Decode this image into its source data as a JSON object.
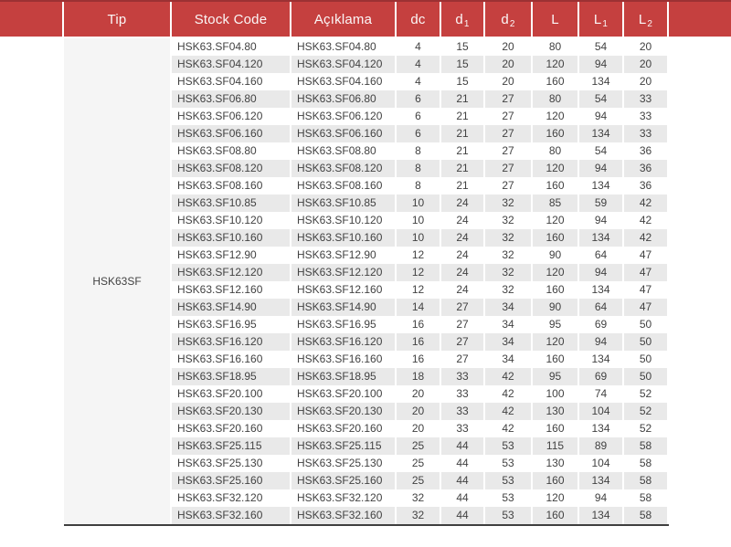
{
  "colors": {
    "red": "#C5403F",
    "red_dark": "#9C3133",
    "stripe": "#E9E9E9",
    "tip_bg": "#F5F5F5",
    "line": "#3F3F3F",
    "text": "#424242",
    "header_text": "#FBF7F7"
  },
  "table": {
    "header": {
      "tip": "Tip",
      "stock_code": "Stock Code",
      "aciklama": "Açıklama",
      "dc": "dc",
      "d1": {
        "base": "d",
        "sub": "1"
      },
      "d2": {
        "base": "d",
        "sub": "2"
      },
      "L": "L",
      "L1": {
        "base": "L",
        "sub": "1"
      },
      "L2": {
        "base": "L",
        "sub": "2"
      }
    },
    "tip_group_label": "HSK63SF",
    "rows": [
      {
        "stock_code": "HSK63.SF04.80",
        "aciklama": "HSK63.SF04.80",
        "dc": 4,
        "d1": 15,
        "d2": 20,
        "L": 80,
        "L1": 54,
        "L2": 20
      },
      {
        "stock_code": "HSK63.SF04.120",
        "aciklama": "HSK63.SF04.120",
        "dc": 4,
        "d1": 15,
        "d2": 20,
        "L": 120,
        "L1": 94,
        "L2": 20
      },
      {
        "stock_code": "HSK63.SF04.160",
        "aciklama": "HSK63.SF04.160",
        "dc": 4,
        "d1": 15,
        "d2": 20,
        "L": 160,
        "L1": 134,
        "L2": 20
      },
      {
        "stock_code": "HSK63.SF06.80",
        "aciklama": "HSK63.SF06.80",
        "dc": 6,
        "d1": 21,
        "d2": 27,
        "L": 80,
        "L1": 54,
        "L2": 33
      },
      {
        "stock_code": "HSK63.SF06.120",
        "aciklama": "HSK63.SF06.120",
        "dc": 6,
        "d1": 21,
        "d2": 27,
        "L": 120,
        "L1": 94,
        "L2": 33
      },
      {
        "stock_code": "HSK63.SF06.160",
        "aciklama": "HSK63.SF06.160",
        "dc": 6,
        "d1": 21,
        "d2": 27,
        "L": 160,
        "L1": 134,
        "L2": 33
      },
      {
        "stock_code": "HSK63.SF08.80",
        "aciklama": "HSK63.SF08.80",
        "dc": 8,
        "d1": 21,
        "d2": 27,
        "L": 80,
        "L1": 54,
        "L2": 36
      },
      {
        "stock_code": "HSK63.SF08.120",
        "aciklama": "HSK63.SF08.120",
        "dc": 8,
        "d1": 21,
        "d2": 27,
        "L": 120,
        "L1": 94,
        "L2": 36
      },
      {
        "stock_code": "HSK63.SF08.160",
        "aciklama": "HSK63.SF08.160",
        "dc": 8,
        "d1": 21,
        "d2": 27,
        "L": 160,
        "L1": 134,
        "L2": 36
      },
      {
        "stock_code": "HSK63.SF10.85",
        "aciklama": "HSK63.SF10.85",
        "dc": 10,
        "d1": 24,
        "d2": 32,
        "L": 85,
        "L1": 59,
        "L2": 42
      },
      {
        "stock_code": "HSK63.SF10.120",
        "aciklama": "HSK63.SF10.120",
        "dc": 10,
        "d1": 24,
        "d2": 32,
        "L": 120,
        "L1": 94,
        "L2": 42
      },
      {
        "stock_code": "HSK63.SF10.160",
        "aciklama": "HSK63.SF10.160",
        "dc": 10,
        "d1": 24,
        "d2": 32,
        "L": 160,
        "L1": 134,
        "L2": 42
      },
      {
        "stock_code": "HSK63.SF12.90",
        "aciklama": "HSK63.SF12.90",
        "dc": 12,
        "d1": 24,
        "d2": 32,
        "L": 90,
        "L1": 64,
        "L2": 47
      },
      {
        "stock_code": "HSK63.SF12.120",
        "aciklama": "HSK63.SF12.120",
        "dc": 12,
        "d1": 24,
        "d2": 32,
        "L": 120,
        "L1": 94,
        "L2": 47
      },
      {
        "stock_code": "HSK63.SF12.160",
        "aciklama": "HSK63.SF12.160",
        "dc": 12,
        "d1": 24,
        "d2": 32,
        "L": 160,
        "L1": 134,
        "L2": 47
      },
      {
        "stock_code": "HSK63.SF14.90",
        "aciklama": "HSK63.SF14.90",
        "dc": 14,
        "d1": 27,
        "d2": 34,
        "L": 90,
        "L1": 64,
        "L2": 47
      },
      {
        "stock_code": "HSK63.SF16.95",
        "aciklama": "HSK63.SF16.95",
        "dc": 16,
        "d1": 27,
        "d2": 34,
        "L": 95,
        "L1": 69,
        "L2": 50
      },
      {
        "stock_code": "HSK63.SF16.120",
        "aciklama": "HSK63.SF16.120",
        "dc": 16,
        "d1": 27,
        "d2": 34,
        "L": 120,
        "L1": 94,
        "L2": 50
      },
      {
        "stock_code": "HSK63.SF16.160",
        "aciklama": "HSK63.SF16.160",
        "dc": 16,
        "d1": 27,
        "d2": 34,
        "L": 160,
        "L1": 134,
        "L2": 50
      },
      {
        "stock_code": "HSK63.SF18.95",
        "aciklama": "HSK63.SF18.95",
        "dc": 18,
        "d1": 33,
        "d2": 42,
        "L": 95,
        "L1": 69,
        "L2": 50
      },
      {
        "stock_code": "HSK63.SF20.100",
        "aciklama": "HSK63.SF20.100",
        "dc": 20,
        "d1": 33,
        "d2": 42,
        "L": 100,
        "L1": 74,
        "L2": 52
      },
      {
        "stock_code": "HSK63.SF20.130",
        "aciklama": "HSK63.SF20.130",
        "dc": 20,
        "d1": 33,
        "d2": 42,
        "L": 130,
        "L1": 104,
        "L2": 52
      },
      {
        "stock_code": "HSK63.SF20.160",
        "aciklama": "HSK63.SF20.160",
        "dc": 20,
        "d1": 33,
        "d2": 42,
        "L": 160,
        "L1": 134,
        "L2": 52
      },
      {
        "stock_code": "HSK63.SF25.115",
        "aciklama": "HSK63.SF25.115",
        "dc": 25,
        "d1": 44,
        "d2": 53,
        "L": 115,
        "L1": 89,
        "L2": 58
      },
      {
        "stock_code": "HSK63.SF25.130",
        "aciklama": "HSK63.SF25.130",
        "dc": 25,
        "d1": 44,
        "d2": 53,
        "L": 130,
        "L1": 104,
        "L2": 58
      },
      {
        "stock_code": "HSK63.SF25.160",
        "aciklama": "HSK63.SF25.160",
        "dc": 25,
        "d1": 44,
        "d2": 53,
        "L": 160,
        "L1": 134,
        "L2": 58
      },
      {
        "stock_code": "HSK63.SF32.120",
        "aciklama": "HSK63.SF32.120",
        "dc": 32,
        "d1": 44,
        "d2": 53,
        "L": 120,
        "L1": 94,
        "L2": 58
      },
      {
        "stock_code": "HSK63.SF32.160",
        "aciklama": "HSK63.SF32.160",
        "dc": 32,
        "d1": 44,
        "d2": 53,
        "L": 160,
        "L1": 134,
        "L2": 58
      }
    ]
  }
}
